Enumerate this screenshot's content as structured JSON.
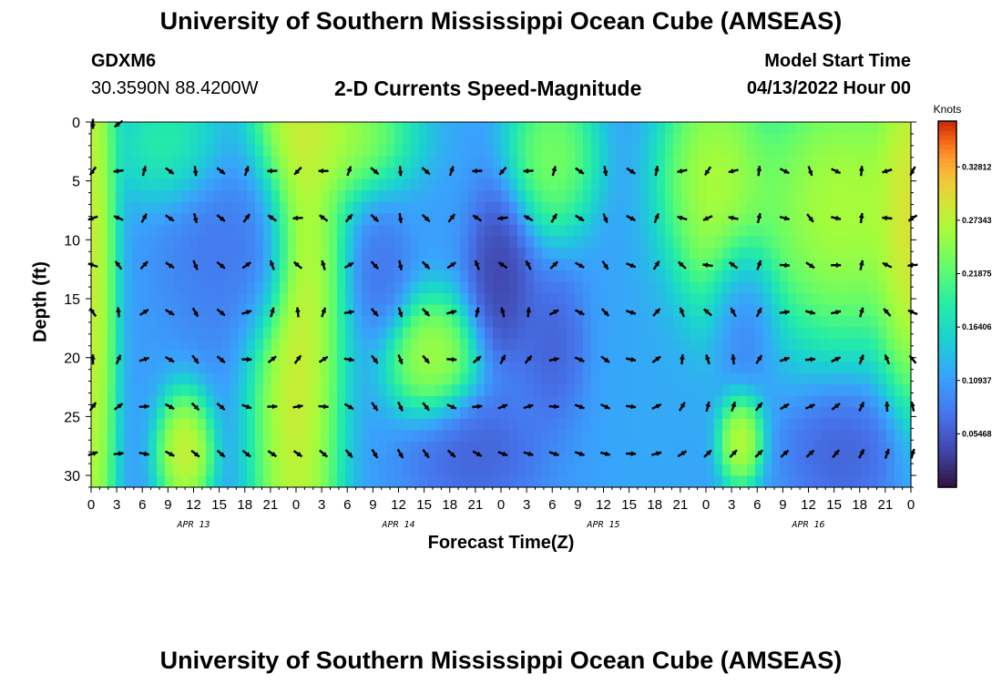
{
  "header": {
    "title": "University of Southern Mississippi Ocean Cube (AMSEAS)",
    "station": "GDXM6",
    "coords": "30.3590N  88.4200W",
    "subtitle": "2-D Currents Speed-Magnitude",
    "model_start_label": "Model Start Time",
    "model_start_value": "04/13/2022 Hour 00",
    "footer_title": "University of Southern Mississippi Ocean Cube (AMSEAS)"
  },
  "chart_data": {
    "type": "heatmap",
    "title": "2-D Currents Speed-Magnitude",
    "xlabel": "Forecast Time(Z)",
    "ylabel": "Depth (ft)",
    "x_ticks": [
      "0",
      "3",
      "6",
      "9",
      "12",
      "15",
      "18",
      "21",
      "0",
      "3",
      "6",
      "9",
      "12",
      "15",
      "18",
      "21",
      "0",
      "3",
      "6",
      "9",
      "12",
      "15",
      "18",
      "21",
      "0",
      "3",
      "6",
      "9",
      "12",
      "15",
      "18",
      "21",
      "0"
    ],
    "date_labels": [
      {
        "label": "APR 13",
        "hour": 12
      },
      {
        "label": "APR 14",
        "hour": 36
      },
      {
        "label": "APR 15",
        "hour": 60
      },
      {
        "label": "APR 16",
        "hour": 84
      }
    ],
    "xlim_hours": [
      0,
      96
    ],
    "ylim_ft": [
      0,
      31
    ],
    "y_ticks": [
      0,
      5,
      10,
      15,
      20,
      25,
      30
    ],
    "colorbar": {
      "label": "Knots",
      "ticks": [
        "0.32812",
        "0.27343",
        "0.21875",
        "0.16406",
        "0.10937",
        "0.05468"
      ],
      "tick_values": [
        0.32812,
        0.27343,
        0.21875,
        0.16406,
        0.10937,
        0.05468
      ],
      "range": [
        0.0,
        0.375
      ]
    },
    "arrow_depths_ft": [
      0,
      4,
      8,
      12,
      16,
      20,
      24,
      28
    ],
    "arrow_hours": [
      0,
      3,
      6,
      9,
      12,
      15,
      18,
      21,
      24,
      27,
      30,
      33,
      36,
      39,
      42,
      45,
      48,
      51,
      54,
      57,
      60,
      63,
      66,
      69,
      72,
      75,
      78,
      81,
      84,
      87,
      90,
      93,
      96
    ],
    "speed_features": [
      {
        "hour": 0,
        "depth": 12,
        "speed": 0.33,
        "h_spread": 2.2,
        "d_spread": 30
      },
      {
        "hour": 10,
        "depth": 2,
        "speed": 0.22,
        "h_spread": 5,
        "d_spread": 4
      },
      {
        "hour": 11,
        "depth": 28,
        "speed": 0.33,
        "h_spread": 2.5,
        "d_spread": 4
      },
      {
        "hour": 20,
        "depth": 11,
        "speed": 0.04,
        "h_spread": 2.5,
        "d_spread": 5
      },
      {
        "hour": 16,
        "depth": 9,
        "speed": 0.07,
        "h_spread": 6,
        "d_spread": 8
      },
      {
        "hour": 24,
        "depth": 14,
        "speed": 0.34,
        "h_spread": 4,
        "d_spread": 30
      },
      {
        "hour": 28,
        "depth": 1,
        "speed": 0.3,
        "h_spread": 7,
        "d_spread": 4
      },
      {
        "hour": 34,
        "depth": 13,
        "speed": 0.07,
        "h_spread": 2.5,
        "d_spread": 4
      },
      {
        "hour": 40,
        "depth": 20,
        "speed": 0.3,
        "h_spread": 4,
        "d_spread": 4
      },
      {
        "hour": 45,
        "depth": 28,
        "speed": 0.05,
        "h_spread": 6,
        "d_spread": 4
      },
      {
        "hour": 48,
        "depth": 13,
        "speed": 0.02,
        "h_spread": 3,
        "d_spread": 6
      },
      {
        "hour": 54,
        "depth": 19,
        "speed": 0.05,
        "h_spread": 3,
        "d_spread": 5
      },
      {
        "hour": 54,
        "depth": 3,
        "speed": 0.27,
        "h_spread": 4,
        "d_spread": 5
      },
      {
        "hour": 66,
        "depth": 23,
        "speed": 0.12,
        "h_spread": 5,
        "d_spread": 10
      },
      {
        "hour": 73,
        "depth": 6,
        "speed": 0.31,
        "h_spread": 5,
        "d_spread": 9
      },
      {
        "hour": 76,
        "depth": 16,
        "speed": 0.06,
        "h_spread": 3,
        "d_spread": 5
      },
      {
        "hour": 76,
        "depth": 27,
        "speed": 0.32,
        "h_spread": 2,
        "d_spread": 3
      },
      {
        "hour": 88,
        "depth": 7,
        "speed": 0.31,
        "h_spread": 8,
        "d_spread": 9
      },
      {
        "hour": 88,
        "depth": 28,
        "speed": 0.05,
        "h_spread": 5,
        "d_spread": 4
      },
      {
        "hour": 96,
        "depth": 8,
        "speed": 0.34,
        "h_spread": 3,
        "d_spread": 12
      }
    ]
  }
}
